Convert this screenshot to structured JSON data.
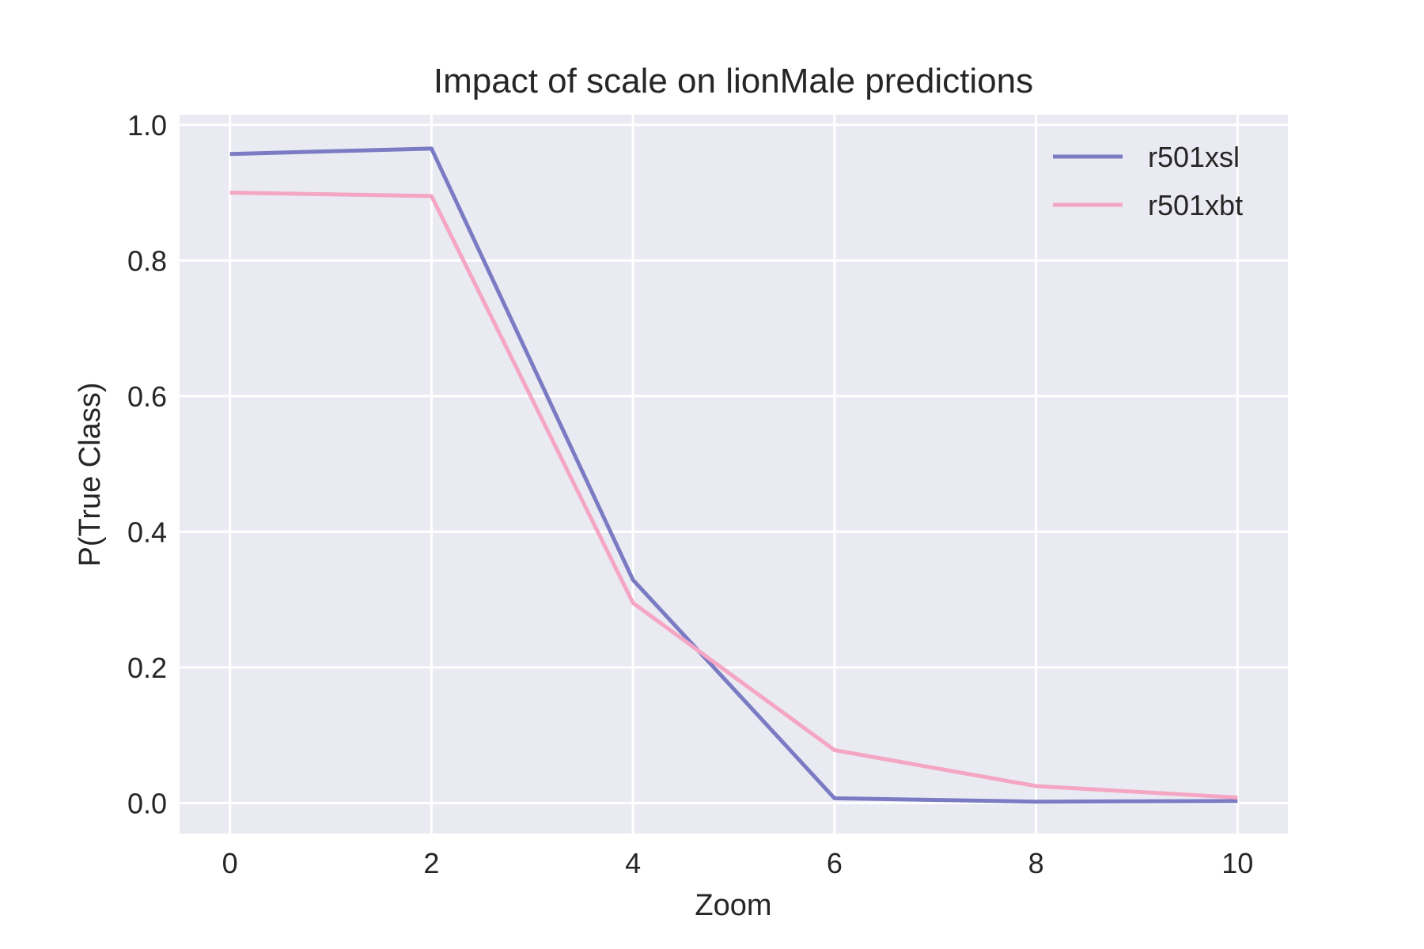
{
  "chart_data": {
    "type": "line",
    "title": "Impact of scale on lionMale predictions",
    "xlabel": "Zoom",
    "ylabel": "P(True Class)",
    "x": [
      0,
      2,
      4,
      6,
      8,
      10
    ],
    "xlim": [
      -0.5,
      10.5
    ],
    "ylim": [
      -0.045,
      1.015
    ],
    "xticks": [
      0,
      2,
      4,
      6,
      8,
      10
    ],
    "xtick_labels": [
      "0",
      "2",
      "4",
      "6",
      "8",
      "10"
    ],
    "yticks": [
      0.0,
      0.2,
      0.4,
      0.6,
      0.8,
      1.0
    ],
    "ytick_labels": [
      "0.0",
      "0.2",
      "0.4",
      "0.6",
      "0.8",
      "1.0"
    ],
    "grid": true,
    "legend_position": "top-right",
    "series": [
      {
        "name": "r501xsl",
        "color": "#7b7bc4",
        "values": [
          0.957,
          0.965,
          0.329,
          0.007,
          0.002,
          0.003
        ]
      },
      {
        "name": "r501xbt",
        "color": "#f4a6c3",
        "values": [
          0.9,
          0.895,
          0.295,
          0.078,
          0.025,
          0.008
        ]
      }
    ]
  },
  "colors": {
    "plot_background": "#eaeaf2",
    "grid": "#ffffff",
    "text": "#262626"
  }
}
